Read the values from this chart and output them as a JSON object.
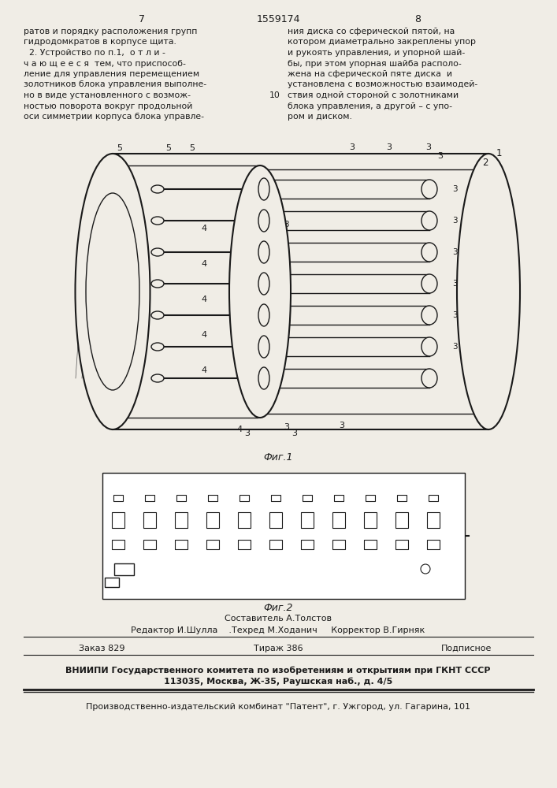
{
  "page_number_left": "7",
  "page_number_center": "1559174",
  "page_number_right": "8",
  "bg_color": "#f0ede6",
  "text_color": "#1a1a1a",
  "left_col_text": [
    "ратов и порядку расположения групп",
    "гидродомкратов в корпусе щита.",
    "  2. Устройство по п.1,  о т л и -",
    "ч а ю щ е е с я  тем, что приспособ-",
    "ление для управления перемещением",
    "золотников блока управления выполне-",
    "но в виде установленного с возмож-",
    "ностью поворота вокруг продольной",
    "оси симметрии корпуса блока управле-"
  ],
  "right_col_text": [
    "ния диска со сферической пятой, на",
    "котором диаметрально закреплены упор",
    "и рукоять управления, и упорной шай-",
    "бы, при этом упорная шайба располо-",
    "жена на сферической пяте диска  и",
    "установлена с возможностью взаимодей-",
    "ствия одной стороной с золотниками",
    "блока управления, а другой – с упо-",
    "ром и диском."
  ],
  "right_col_number": "10",
  "fig1_caption": "Фиг.1",
  "fig2_caption": "Фиг.2",
  "staff_line": "Составитель А.Толстов",
  "editor_line": "Редактор И.Шулла    .Техред М.Ходанич     Корректор В.Гирняк",
  "order_line": "Заказ 829             Тираж 386             Подписное",
  "vnipi_line1": "ВНИИПИ Государственного комитета по изобретениям и открытиям при ГКНТ СССР",
  "vnipi_line2": "113035, Москва, Ж-35, Раушская наб., д. 4/5",
  "publisher_line": "Производственно-издательский комбинат \"Патент\", г. Ужгород, ул. Гагарина, 101"
}
